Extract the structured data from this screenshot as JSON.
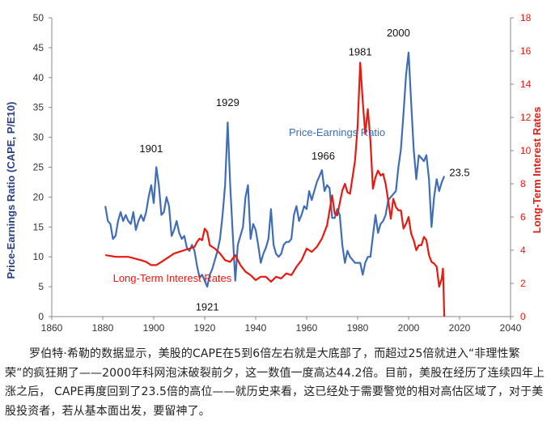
{
  "chart_data": {
    "type": "line",
    "xlim": [
      1860,
      2040
    ],
    "x_ticks": [
      1860,
      1880,
      1900,
      1920,
      1940,
      1960,
      1980,
      2000,
      2020,
      2040
    ],
    "ylim_left": [
      0,
      50
    ],
    "y_ticks_left": [
      0,
      5,
      10,
      15,
      20,
      25,
      30,
      35,
      40,
      45,
      50
    ],
    "ylim_right": [
      0,
      18
    ],
    "y_ticks_right": [
      0,
      2,
      4,
      6,
      8,
      10,
      12,
      14,
      16,
      18
    ],
    "ylabel_left": "Price-Earnings Ratio (CAPE, P/E10)",
    "ylabel_right": "Long-Term Interest Rates",
    "grid": false,
    "series": [
      {
        "name": "Price-Earnings Ratio",
        "color": "#3f6db7",
        "axis": "left",
        "points": [
          [
            1881,
            18.5
          ],
          [
            1882,
            16
          ],
          [
            1883,
            15.5
          ],
          [
            1884,
            13
          ],
          [
            1885,
            13.5
          ],
          [
            1886,
            16
          ],
          [
            1887,
            17.5
          ],
          [
            1888,
            16
          ],
          [
            1889,
            17
          ],
          [
            1890,
            16
          ],
          [
            1891,
            15.5
          ],
          [
            1892,
            17.5
          ],
          [
            1893,
            14.5
          ],
          [
            1894,
            16
          ],
          [
            1895,
            17
          ],
          [
            1896,
            16
          ],
          [
            1897,
            17.5
          ],
          [
            1898,
            20
          ],
          [
            1899,
            22
          ],
          [
            1900,
            19
          ],
          [
            1901,
            25
          ],
          [
            1902,
            22
          ],
          [
            1903,
            17
          ],
          [
            1904,
            17.5
          ],
          [
            1905,
            20
          ],
          [
            1906,
            18.5
          ],
          [
            1907,
            13.5
          ],
          [
            1908,
            14.5
          ],
          [
            1909,
            16
          ],
          [
            1910,
            14
          ],
          [
            1911,
            13
          ],
          [
            1912,
            13.5
          ],
          [
            1913,
            11.5
          ],
          [
            1914,
            11
          ],
          [
            1915,
            12
          ],
          [
            1916,
            11
          ],
          [
            1917,
            8.5
          ],
          [
            1918,
            6.5
          ],
          [
            1919,
            7
          ],
          [
            1920,
            6
          ],
          [
            1921,
            5
          ],
          [
            1922,
            7
          ],
          [
            1923,
            8
          ],
          [
            1924,
            9.5
          ],
          [
            1925,
            11
          ],
          [
            1926,
            13
          ],
          [
            1927,
            17
          ],
          [
            1928,
            22
          ],
          [
            1929,
            32.5
          ],
          [
            1930,
            22
          ],
          [
            1931,
            14
          ],
          [
            1932,
            6
          ],
          [
            1933,
            12
          ],
          [
            1934,
            13.5
          ],
          [
            1935,
            15
          ],
          [
            1936,
            20
          ],
          [
            1937,
            22
          ],
          [
            1938,
            13
          ],
          [
            1939,
            15.5
          ],
          [
            1940,
            14.5
          ],
          [
            1941,
            12
          ],
          [
            1942,
            9
          ],
          [
            1943,
            10.5
          ],
          [
            1944,
            11.5
          ],
          [
            1945,
            13
          ],
          [
            1946,
            18
          ],
          [
            1947,
            12
          ],
          [
            1948,
            10.5
          ],
          [
            1949,
            10
          ],
          [
            1950,
            10.5
          ],
          [
            1951,
            12
          ],
          [
            1952,
            12.5
          ],
          [
            1953,
            12.5
          ],
          [
            1954,
            13
          ],
          [
            1955,
            17
          ],
          [
            1956,
            18.5
          ],
          [
            1957,
            16
          ],
          [
            1958,
            17
          ],
          [
            1959,
            18.5
          ],
          [
            1960,
            18
          ],
          [
            1961,
            21
          ],
          [
            1962,
            19.5
          ],
          [
            1963,
            21
          ],
          [
            1964,
            22.5
          ],
          [
            1965,
            23.5
          ],
          [
            1966,
            24.5
          ],
          [
            1967,
            21
          ],
          [
            1968,
            22
          ],
          [
            1969,
            21.5
          ],
          [
            1970,
            16.5
          ],
          [
            1971,
            16.5
          ],
          [
            1972,
            18
          ],
          [
            1973,
            17
          ],
          [
            1974,
            12
          ],
          [
            1975,
            9
          ],
          [
            1976,
            11
          ],
          [
            1977,
            10
          ],
          [
            1978,
            9.5
          ],
          [
            1979,
            9
          ],
          [
            1980,
            9
          ],
          [
            1981,
            9
          ],
          [
            1982,
            7
          ],
          [
            1983,
            9
          ],
          [
            1984,
            10
          ],
          [
            1985,
            10
          ],
          [
            1986,
            13.5
          ],
          [
            1987,
            17
          ],
          [
            1988,
            14
          ],
          [
            1989,
            15.5
          ],
          [
            1990,
            16
          ],
          [
            1991,
            17
          ],
          [
            1992,
            19.5
          ],
          [
            1993,
            20
          ],
          [
            1994,
            20.5
          ],
          [
            1995,
            21
          ],
          [
            1996,
            25
          ],
          [
            1997,
            28
          ],
          [
            1998,
            34
          ],
          [
            1999,
            40.5
          ],
          [
            2000,
            44.2
          ],
          [
            2001,
            36
          ],
          [
            2002,
            28
          ],
          [
            2003,
            23
          ],
          [
            2004,
            27
          ],
          [
            2005,
            26.5
          ],
          [
            2006,
            26
          ],
          [
            2007,
            27
          ],
          [
            2008,
            23
          ],
          [
            2009,
            15
          ],
          [
            2010,
            20
          ],
          [
            2011,
            23
          ],
          [
            2012,
            21
          ],
          [
            2013,
            22.5
          ],
          [
            2014,
            23.5
          ]
        ]
      },
      {
        "name": "Long-Term Interest Rates",
        "color": "#e8190f",
        "axis": "right",
        "points": [
          [
            1881,
            3.7
          ],
          [
            1885,
            3.6
          ],
          [
            1890,
            3.6
          ],
          [
            1895,
            3.4
          ],
          [
            1897,
            3.3
          ],
          [
            1899,
            3.1
          ],
          [
            1901,
            3.1
          ],
          [
            1903,
            3.3
          ],
          [
            1905,
            3.5
          ],
          [
            1908,
            3.8
          ],
          [
            1910,
            3.9
          ],
          [
            1912,
            4
          ],
          [
            1914,
            4.1
          ],
          [
            1916,
            4.2
          ],
          [
            1917,
            4.5
          ],
          [
            1918,
            4.7
          ],
          [
            1919,
            4.6
          ],
          [
            1920,
            5.3
          ],
          [
            1921,
            5.1
          ],
          [
            1922,
            4.3
          ],
          [
            1924,
            4.1
          ],
          [
            1926,
            3.8
          ],
          [
            1928,
            3.4
          ],
          [
            1930,
            3.3
          ],
          [
            1932,
            3.7
          ],
          [
            1934,
            3.1
          ],
          [
            1936,
            2.7
          ],
          [
            1938,
            2.5
          ],
          [
            1940,
            2.2
          ],
          [
            1942,
            2.4
          ],
          [
            1944,
            2.4
          ],
          [
            1946,
            2.1
          ],
          [
            1948,
            2.4
          ],
          [
            1950,
            2.3
          ],
          [
            1952,
            2.6
          ],
          [
            1954,
            2.5
          ],
          [
            1956,
            3
          ],
          [
            1958,
            3.4
          ],
          [
            1960,
            4.1
          ],
          [
            1962,
            3.9
          ],
          [
            1964,
            4.2
          ],
          [
            1966,
            4.7
          ],
          [
            1968,
            5.5
          ],
          [
            1970,
            7.3
          ],
          [
            1971,
            6.2
          ],
          [
            1972,
            6.1
          ],
          [
            1974,
            7.6
          ],
          [
            1975,
            8
          ],
          [
            1976,
            7.5
          ],
          [
            1977,
            7.4
          ],
          [
            1978,
            8.4
          ],
          [
            1979,
            9.4
          ],
          [
            1980,
            11.5
          ],
          [
            1981,
            15.3
          ],
          [
            1982,
            13
          ],
          [
            1983,
            11
          ],
          [
            1984,
            12.5
          ],
          [
            1985,
            10.6
          ],
          [
            1986,
            7.7
          ],
          [
            1987,
            8.4
          ],
          [
            1988,
            8.8
          ],
          [
            1989,
            8.5
          ],
          [
            1990,
            8.6
          ],
          [
            1991,
            8
          ],
          [
            1992,
            7
          ],
          [
            1993,
            5.9
          ],
          [
            1994,
            7.1
          ],
          [
            1995,
            6.6
          ],
          [
            1996,
            6.4
          ],
          [
            1997,
            6.4
          ],
          [
            1998,
            5.3
          ],
          [
            1999,
            5.6
          ],
          [
            2000,
            6.0
          ],
          [
            2001,
            5
          ],
          [
            2002,
            4.6
          ],
          [
            2003,
            4
          ],
          [
            2004,
            4.3
          ],
          [
            2005,
            4.3
          ],
          [
            2006,
            4.8
          ],
          [
            2007,
            4.6
          ],
          [
            2008,
            3.7
          ],
          [
            2009,
            3.3
          ],
          [
            2010,
            3.2
          ],
          [
            2011,
            3
          ],
          [
            2012,
            1.8
          ],
          [
            2013,
            2.3
          ],
          [
            2013.5,
            2.9
          ],
          [
            2014,
            0
          ]
        ]
      }
    ],
    "annotations": [
      {
        "text": "1901",
        "x": 1899,
        "y": 27.5
      },
      {
        "text": "1929",
        "x": 1929,
        "y": 35.2
      },
      {
        "text": "1966",
        "x": 1966.5,
        "y": 26.3
      },
      {
        "text": "1981",
        "x": 1981,
        "y": 43.7
      },
      {
        "text": "2000",
        "x": 1996,
        "y": 46.9
      },
      {
        "text": "1921",
        "x": 1921,
        "y": 1.0
      },
      {
        "text": "23.5",
        "x": 2020,
        "y": 23.5
      }
    ],
    "series_labels": [
      {
        "text": "Price-Earnings Ratio",
        "x": 1953,
        "y": 30.2
      },
      {
        "text": "Long-Term Interest Rates",
        "x": 1884,
        "y": 5.8
      }
    ]
  },
  "caption": "罗伯特·希勒的数据显示，美股的CAPE在5到6倍左右就是大底部了，而超过25倍就进入“非理性繁荣”的疯狂期了——2000年科网泡沫破裂前夕，这一数值一度高达44.2倍。目前，美股在经历了连续四年上涨之后， CAPE再度回到了23.5倍的高位——就历史来看，这已经处于需要警觉的相对高估区域了，对于美股投资者，若从基本面出发，要留神了。"
}
